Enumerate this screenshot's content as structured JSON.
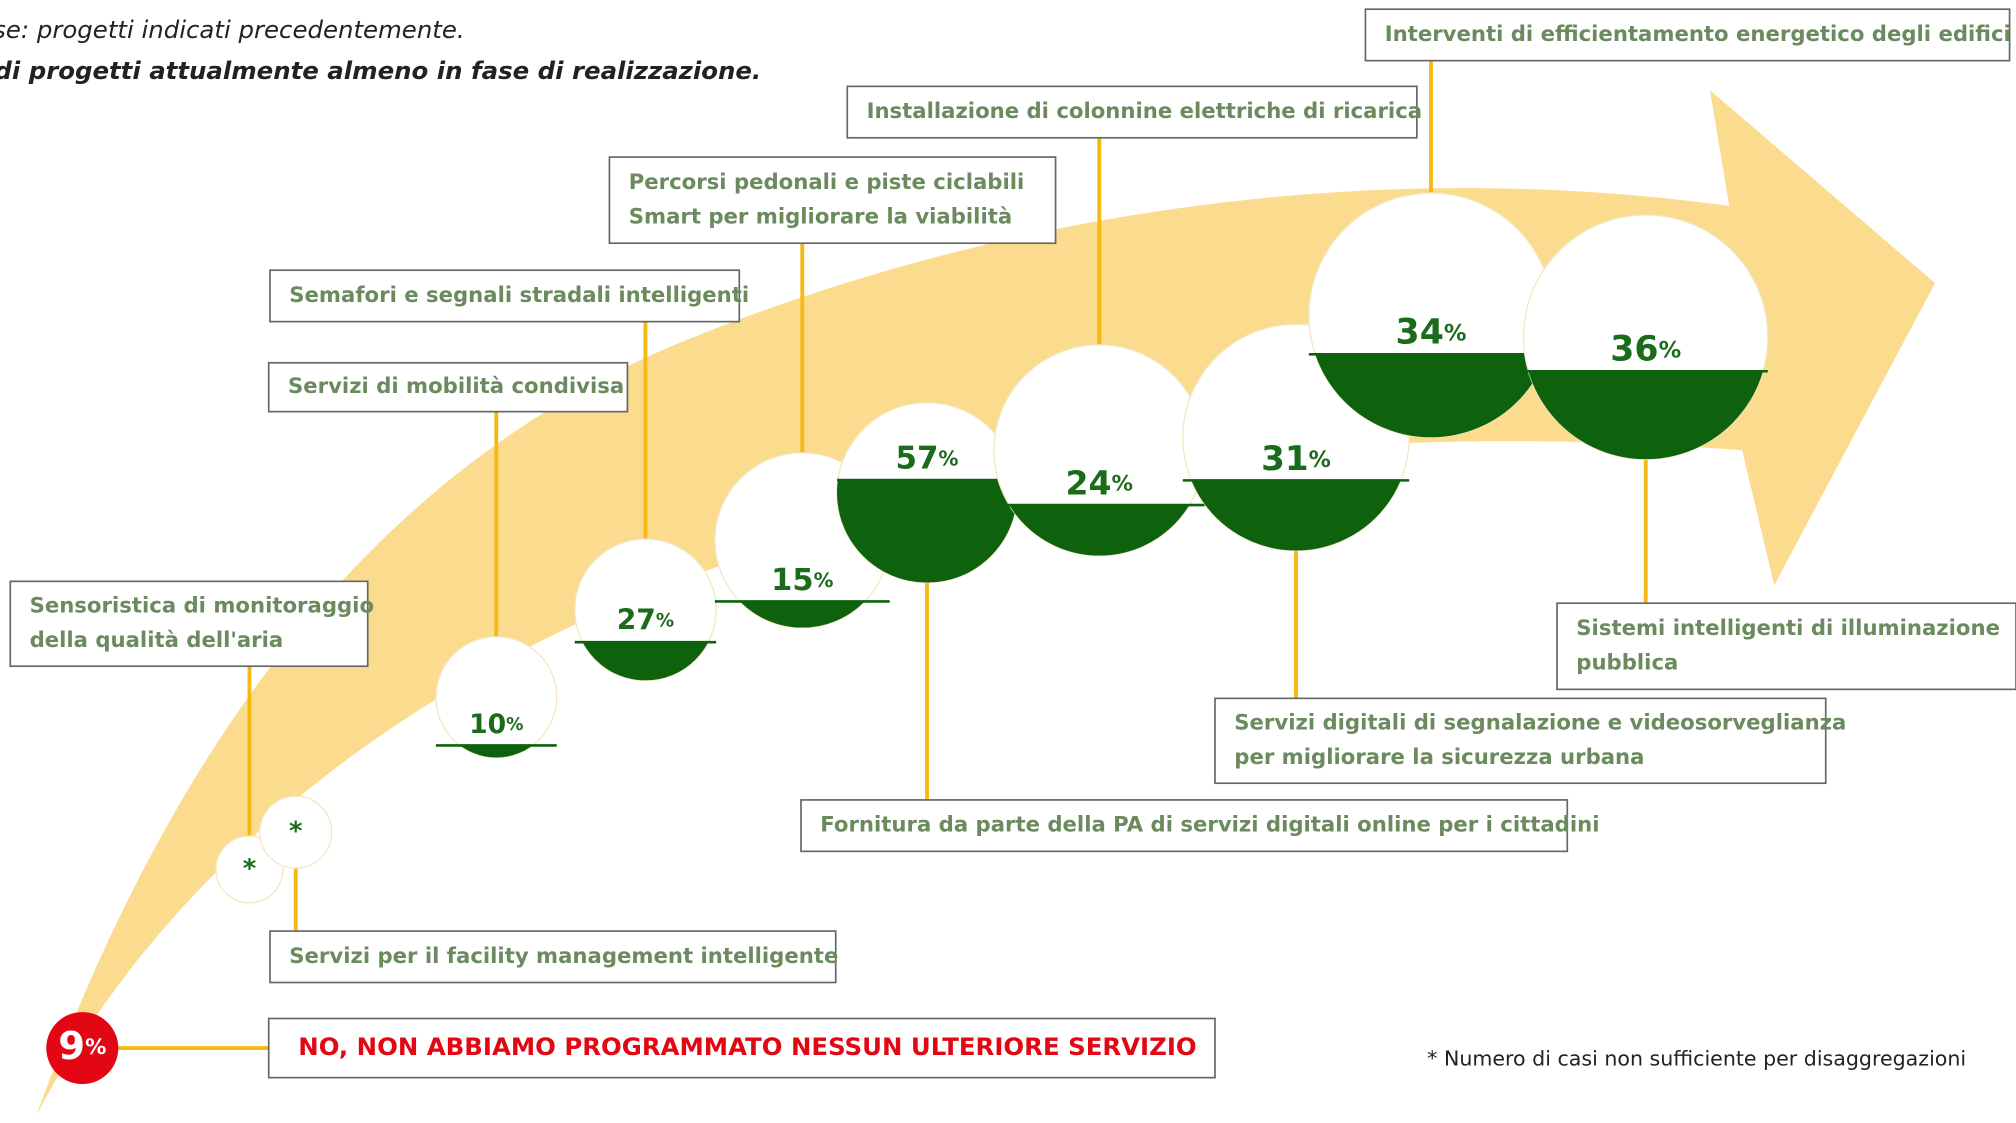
{
  "header": {
    "line1": "Base: progetti indicati precedentemente.",
    "line2": "% di progetti attualmente almeno in fase di realizzazione."
  },
  "unit": "%",
  "items": [
    {
      "label": [
        "Sensoristica di monitoraggio",
        "della qualità dell'aria"
      ],
      "value_label": "*"
    },
    {
      "label": [
        "Servizi per il facility management intelligente"
      ],
      "value_label": "*"
    },
    {
      "label": [
        "Servizi di mobilità condivisa"
      ],
      "value": 10
    },
    {
      "label": [
        "Semafori e segnali stradali intelligenti"
      ],
      "value": 27
    },
    {
      "label": [
        "Percorsi pedonali e piste ciclabili",
        "Smart per migliorare la viabilità"
      ],
      "value": 15
    },
    {
      "label": [
        "Fornitura da parte della PA di servizi digitali online per i cittadini"
      ],
      "value": 57
    },
    {
      "label": [
        "Installazione di colonnine elettriche di ricarica"
      ],
      "value": 24
    },
    {
      "label": [
        "Servizi digitali di segnalazione e videosorveglianza",
        "per migliorare la sicurezza urbana"
      ],
      "value": 31
    },
    {
      "label": [
        "Interventi di efficientamento energetico degli edifici"
      ],
      "value": 34
    },
    {
      "label": [
        "Sistemi intelligenti di illuminazione",
        "pubblica"
      ],
      "value": 36
    }
  ],
  "no_plan": {
    "label": "NO, NON ABBIAMO PROGRAMMATO NESSUN ULTERIORE SERVIZIO",
    "value": 9
  },
  "note": "* Numero di casi non sufficiente per disaggregazioni"
}
